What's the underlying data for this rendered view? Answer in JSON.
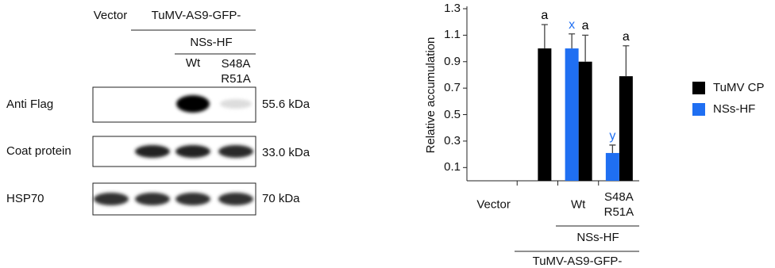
{
  "blot": {
    "header": {
      "vector": "Vector",
      "virus": "TuMV-AS9-GFP-",
      "nss": "NSs-HF",
      "wt": "Wt",
      "mutant": "S48A R51A"
    },
    "rows": [
      {
        "label": "Anti Flag",
        "size": "55.6 kDa"
      },
      {
        "label": "Coat protein",
        "size": "33.0 kDa"
      },
      {
        "label": "HSP70",
        "size": "70 kDa"
      }
    ]
  },
  "chart_data": {
    "type": "bar",
    "y_label": "Relative accumulation",
    "categories": [
      "Vector",
      null,
      "Wt",
      "S48A R51A"
    ],
    "group_labels": [
      "NSs-HF",
      "TuMV-AS9-GFP-"
    ],
    "series": [
      {
        "name": "TuMV CP",
        "color": "#000000",
        "values": [
          null,
          1.0,
          0.9,
          0.79
        ],
        "errors": [
          null,
          0.18,
          0.2,
          0.23
        ],
        "letters": [
          null,
          "a",
          "a",
          "a"
        ]
      },
      {
        "name": "NSs-HF",
        "color": "#1f6ff2",
        "values": [
          null,
          null,
          1.0,
          0.21
        ],
        "errors": [
          null,
          null,
          0.11,
          0.06
        ],
        "letters": [
          null,
          null,
          "x",
          "y"
        ]
      }
    ],
    "ylim": [
      0,
      1.3
    ],
    "yticks": [
      0.1,
      0.3,
      0.5,
      0.7,
      0.9,
      1.1,
      1.3
    ],
    "legend": "right"
  }
}
